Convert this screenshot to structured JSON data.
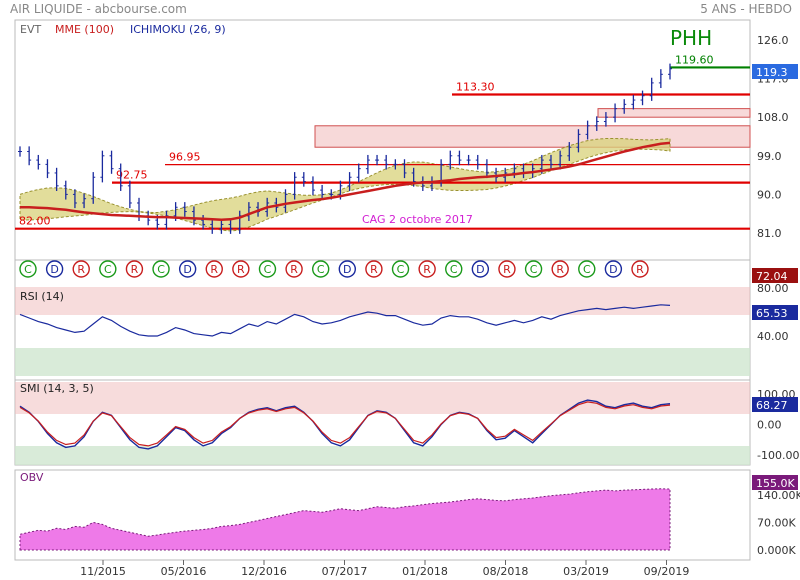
{
  "header": {
    "left": "AIR LIQUIDE - abcbourse.com",
    "right": "5 ANS - HEBDO"
  },
  "main": {
    "labels": {
      "evt": "EVT",
      "mme": "MME (100)",
      "ichimoku": "ICHIMOKU (26, 9)"
    },
    "pattern_label": "PHH",
    "annotation": "CAG 2 octobre 2017",
    "level_labels": [
      "82.00",
      "92.75",
      "96.95",
      "113.30",
      "119.60"
    ],
    "last_price": "119.3",
    "lower_value": "72.04",
    "event_markers": [
      "C",
      "D",
      "R",
      "C",
      "R",
      "C",
      "D",
      "R",
      "R",
      "C",
      "R",
      "C",
      "D",
      "R",
      "C",
      "R",
      "C",
      "D",
      "R",
      "C",
      "R",
      "C",
      "D",
      "R"
    ],
    "colors": {
      "candle": "#1a2a9e",
      "mme": "#c81e1e",
      "cloud": "#d8d27a",
      "resistance": "#e00000",
      "breakout": "#008000"
    }
  },
  "rsi": {
    "label": "RSI (14)",
    "value": "65.53",
    "ticks": [
      "80.00",
      "40.00"
    ]
  },
  "smi": {
    "label": "SMI (14, 3, 5)",
    "value": "68.27",
    "ticks": [
      "100.00",
      "0.00",
      "-100.00"
    ]
  },
  "obv": {
    "label": "OBV",
    "value": "155.0K",
    "ticks": [
      "140.00K",
      "70.00K",
      "0.000K"
    ]
  },
  "xaxis": [
    "11/2015",
    "05/2016",
    "12/2016",
    "07/2017",
    "01/2018",
    "08/2018",
    "03/2019",
    "09/2019"
  ],
  "chart_data": {
    "type": "line",
    "ylim": [
      76,
      128
    ],
    "yticks": [
      126.0,
      117.0,
      108.0,
      99.0,
      90.0,
      81.0
    ],
    "price": [
      100,
      98,
      97,
      95,
      92,
      90,
      88,
      89,
      94,
      99,
      96,
      92,
      88,
      85,
      84,
      83,
      85,
      87,
      86,
      84,
      83,
      82,
      83,
      82,
      85,
      87,
      86,
      88,
      87,
      90,
      94,
      93,
      91,
      90,
      90,
      92,
      94,
      96,
      98,
      98,
      97,
      97,
      95,
      93,
      92,
      93,
      97,
      99,
      98,
      98,
      97,
      95,
      94,
      95,
      96,
      95,
      96,
      98,
      97,
      99,
      101,
      104,
      106,
      107,
      108,
      110,
      111,
      112,
      113,
      116,
      118,
      119.3
    ],
    "mme100": [
      87.0,
      87.0,
      86.9,
      86.8,
      86.6,
      86.4,
      86.1,
      85.8,
      85.6,
      85.4,
      85.2,
      85.1,
      85.0,
      84.9,
      84.8,
      84.7,
      84.7,
      84.6,
      84.5,
      84.4,
      84.3,
      84.2,
      84.1,
      84.2,
      84.6,
      85.4,
      86.2,
      87.0,
      87.4,
      87.8,
      88.1,
      88.4,
      88.7,
      88.9,
      89.2,
      89.6,
      90.0,
      90.4,
      90.8,
      91.2,
      91.6,
      92.0,
      92.3,
      92.6,
      92.8,
      92.9,
      93.1,
      93.3,
      93.6,
      93.8,
      94.0,
      94.1,
      94.3,
      94.5,
      94.7,
      95.0,
      95.2,
      95.5,
      95.8,
      96.1,
      96.5,
      97.0,
      97.6,
      98.2,
      98.8,
      99.4,
      100.0,
      100.5,
      101.0,
      101.4,
      101.8,
      102.0
    ],
    "levels": [
      {
        "y": 82.0,
        "label": "82.00"
      },
      {
        "y": 92.75,
        "label": "92.75"
      },
      {
        "y": 96.95,
        "label": "96.95"
      },
      {
        "y": 113.3,
        "label": "113.30"
      },
      {
        "y": 119.6,
        "label": "119.60"
      }
    ],
    "zones": [
      [
        101,
        106
      ],
      [
        108,
        110
      ]
    ],
    "rsi": [
      58,
      55,
      52,
      50,
      47,
      45,
      43,
      44,
      50,
      56,
      53,
      48,
      44,
      41,
      40,
      40,
      43,
      47,
      45,
      42,
      41,
      40,
      43,
      42,
      46,
      50,
      48,
      52,
      50,
      54,
      58,
      56,
      52,
      50,
      51,
      53,
      56,
      58,
      60,
      59,
      57,
      57,
      54,
      51,
      49,
      50,
      55,
      57,
      56,
      56,
      54,
      51,
      49,
      51,
      53,
      51,
      53,
      56,
      54,
      57,
      59,
      61,
      62,
      63,
      62,
      63,
      64,
      63,
      64,
      65,
      66,
      65.53
    ],
    "smi": [
      60,
      40,
      10,
      -30,
      -60,
      -75,
      -70,
      -40,
      10,
      40,
      30,
      -10,
      -50,
      -75,
      -80,
      -70,
      -40,
      -10,
      -20,
      -50,
      -70,
      -60,
      -30,
      -10,
      20,
      40,
      50,
      55,
      45,
      55,
      60,
      40,
      10,
      -30,
      -60,
      -70,
      -50,
      -10,
      30,
      45,
      40,
      20,
      -20,
      -60,
      -70,
      -40,
      0,
      30,
      40,
      35,
      20,
      -20,
      -50,
      -45,
      -20,
      -40,
      -60,
      -30,
      0,
      30,
      50,
      70,
      80,
      75,
      60,
      55,
      65,
      70,
      60,
      55,
      65,
      68.27
    ],
    "obv": [
      40,
      45,
      50,
      48,
      55,
      52,
      60,
      58,
      70,
      65,
      55,
      50,
      45,
      40,
      35,
      38,
      42,
      45,
      48,
      50,
      52,
      55,
      60,
      62,
      65,
      70,
      75,
      80,
      85,
      90,
      95,
      100,
      98,
      96,
      100,
      105,
      102,
      100,
      105,
      110,
      108,
      106,
      110,
      112,
      115,
      118,
      120,
      122,
      125,
      128,
      130,
      128,
      126,
      125,
      128,
      130,
      132,
      135,
      138,
      140,
      142,
      145,
      148,
      150,
      152,
      150,
      152,
      153,
      154,
      155,
      155.5,
      155
    ]
  }
}
